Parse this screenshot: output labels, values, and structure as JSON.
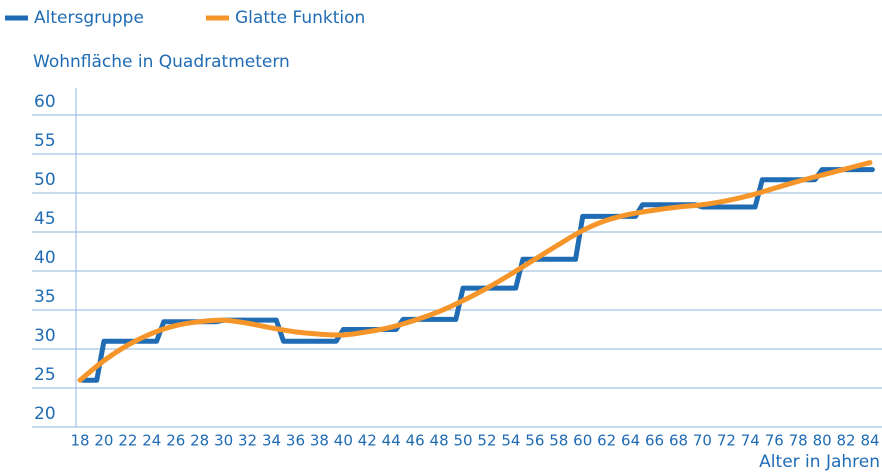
{
  "chart_data": {
    "type": "line",
    "y_label": "Wohnfläche in Quadratmetern",
    "x_label": "Alter in Jahren",
    "xlim": [
      18,
      84
    ],
    "xticks": [
      18,
      20,
      22,
      24,
      26,
      28,
      30,
      32,
      34,
      36,
      38,
      40,
      42,
      44,
      46,
      48,
      50,
      52,
      54,
      56,
      58,
      60,
      62,
      64,
      66,
      68,
      70,
      72,
      74,
      76,
      78,
      80,
      82,
      84
    ],
    "ylim": [
      20,
      60
    ],
    "yticks": [
      20,
      25,
      30,
      35,
      40,
      45,
      50,
      55,
      60
    ],
    "grid": true,
    "legend": "top-left",
    "series": [
      {
        "name": "Altersgruppe",
        "color": "#1f6cb5",
        "smooth": false,
        "x": [
          18.2,
          19.4,
          20,
          24.4,
          25,
          29.4,
          30,
          34.4,
          35,
          39.4,
          40,
          44.4,
          45,
          49.4,
          50,
          54.4,
          55,
          59.4,
          60,
          64.4,
          65,
          69.4,
          70,
          74.4,
          75,
          79.4,
          80,
          84.2
        ],
        "values": [
          26,
          26,
          31,
          31,
          33.5,
          33.5,
          33.7,
          33.7,
          31,
          31,
          32.5,
          32.5,
          33.8,
          33.8,
          37.8,
          37.8,
          41.5,
          41.5,
          47,
          47,
          48.5,
          48.5,
          48.2,
          48.2,
          51.7,
          51.7,
          53,
          53
        ]
      },
      {
        "name": "Glatte Funktion",
        "color": "#f5952a",
        "smooth": true,
        "x": [
          18,
          20,
          22,
          24,
          26,
          28,
          30,
          32,
          34,
          36,
          38,
          40,
          42,
          44,
          46,
          48,
          50,
          52,
          54,
          56,
          58,
          60,
          62,
          64,
          66,
          68,
          70,
          72,
          74,
          76,
          78,
          80,
          82,
          84
        ],
        "values": [
          26,
          28.5,
          30.5,
          32,
          33,
          33.5,
          33.7,
          33.3,
          32.7,
          32.2,
          31.9,
          31.8,
          32.2,
          32.8,
          33.7,
          34.8,
          36.2,
          37.8,
          39.6,
          41.5,
          43.4,
          45.2,
          46.5,
          47.3,
          47.8,
          48.2,
          48.5,
          49,
          49.7,
          50.6,
          51.5,
          52.3,
          53.1,
          53.9
        ]
      }
    ]
  }
}
